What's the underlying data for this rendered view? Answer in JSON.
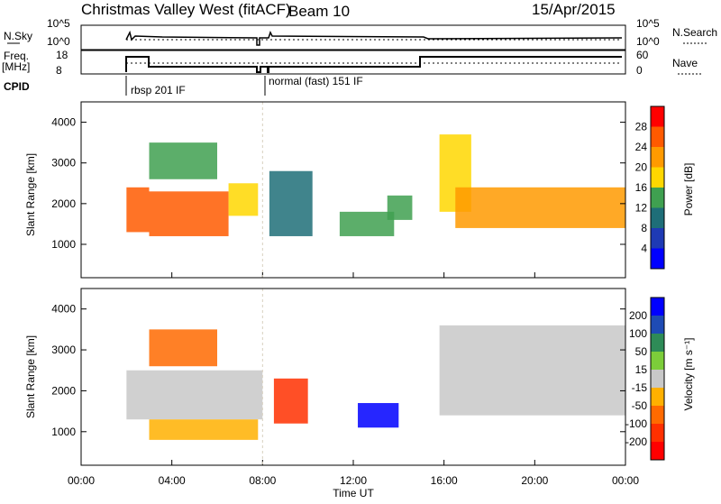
{
  "header": {
    "station": "Christmas Valley West (fitACF)",
    "beam": "Beam 10",
    "date": "15/Apr/2015"
  },
  "panels_left": {
    "nsky_label": "N.Sky",
    "freq_label": "Freq.",
    "freq_unit": "[MHz]",
    "cpid_label": "CPID",
    "nsky_ticks": [
      "10^5",
      "10^0"
    ],
    "freq_ticks": [
      "18",
      "8"
    ]
  },
  "panels_right": {
    "nsearch_label": "N.Search",
    "nave_label": "Nave",
    "nsearch_ticks": [
      "10^5",
      "10^0"
    ],
    "nave_ticks": [
      "60",
      "0"
    ]
  },
  "cpid": {
    "mode1": "rbsp 201 IF",
    "mode2": "normal (fast) 151 IF"
  },
  "colorbars": {
    "power": {
      "label": "Power [dB]",
      "ticks": [
        "28",
        "24",
        "20",
        "16",
        "12",
        "8",
        "4"
      ],
      "colors": [
        "#ff0000",
        "#ff5a00",
        "#ff9a00",
        "#ffd700",
        "#3fa050",
        "#1e6e78",
        "#1e3ab4",
        "#0000ff"
      ]
    },
    "velocity": {
      "label": "Velocity [m s⁻¹]",
      "ticks": [
        "200",
        "100",
        "50",
        "15",
        "-15",
        "-50",
        "-100",
        "-200"
      ],
      "colors": [
        "#0000ff",
        "#1e4bb4",
        "#2e8b57",
        "#7ccd3a",
        "#c8c8c8",
        "#ffb000",
        "#ff6a00",
        "#ff3000",
        "#ff0000"
      ]
    }
  },
  "chart_data": [
    {
      "type": "heatmap",
      "title": "",
      "xlabel": "Time UT",
      "ylabel": "Slant Range [km]",
      "x_ticks": [
        "00:00",
        "04:00",
        "08:00",
        "12:00",
        "16:00",
        "20:00",
        "00:00"
      ],
      "y_ticks": [
        "4000",
        "3000",
        "2000",
        "1000"
      ],
      "xlim_hours": [
        0,
        24
      ],
      "ylim_km": [
        180,
        4500
      ],
      "quantity": "Power [dB]",
      "regions": [
        {
          "t0": 2.0,
          "t1": 3.0,
          "r0": 1300,
          "r1": 2400,
          "value": 24
        },
        {
          "t0": 3.0,
          "t1": 6.5,
          "r0": 1200,
          "r1": 2300,
          "value": 26
        },
        {
          "t0": 6.5,
          "t1": 7.8,
          "r0": 1700,
          "r1": 2500,
          "value": 18
        },
        {
          "t0": 3.0,
          "t1": 6.0,
          "r0": 2600,
          "r1": 3500,
          "value": 14
        },
        {
          "t0": 8.3,
          "t1": 10.2,
          "r0": 1200,
          "r1": 2800,
          "value": 10
        },
        {
          "t0": 11.4,
          "t1": 13.8,
          "r0": 1200,
          "r1": 1800,
          "value": 12
        },
        {
          "t0": 13.5,
          "t1": 14.6,
          "r0": 1600,
          "r1": 2200,
          "value": 14
        },
        {
          "t0": 15.8,
          "t1": 17.2,
          "r0": 1800,
          "r1": 3700,
          "value": 18
        },
        {
          "t0": 16.5,
          "t1": 24.0,
          "r0": 1400,
          "r1": 2400,
          "value": 20
        }
      ]
    },
    {
      "type": "heatmap",
      "title": "",
      "xlabel": "Time UT",
      "ylabel": "Slant Range [km]",
      "x_ticks": [
        "00:00",
        "04:00",
        "08:00",
        "12:00",
        "16:00",
        "20:00",
        "00:00"
      ],
      "y_ticks": [
        "4000",
        "3000",
        "2000",
        "1000"
      ],
      "xlim_hours": [
        0,
        24
      ],
      "ylim_km": [
        180,
        4500
      ],
      "quantity": "Velocity [m s⁻¹]",
      "regions": [
        {
          "t0": 2.0,
          "t1": 8.0,
          "r0": 1300,
          "r1": 2500,
          "value": 0
        },
        {
          "t0": 3.0,
          "t1": 6.0,
          "r0": 2600,
          "r1": 3500,
          "value": -60
        },
        {
          "t0": 3.0,
          "t1": 7.8,
          "r0": 800,
          "r1": 1300,
          "value": -40
        },
        {
          "t0": 8.5,
          "t1": 10.0,
          "r0": 1200,
          "r1": 2300,
          "value": -120
        },
        {
          "t0": 12.2,
          "t1": 14.0,
          "r0": 1100,
          "r1": 1700,
          "value": 220
        },
        {
          "t0": 15.8,
          "t1": 24.0,
          "r0": 1400,
          "r1": 3600,
          "value": 0
        }
      ]
    }
  ]
}
